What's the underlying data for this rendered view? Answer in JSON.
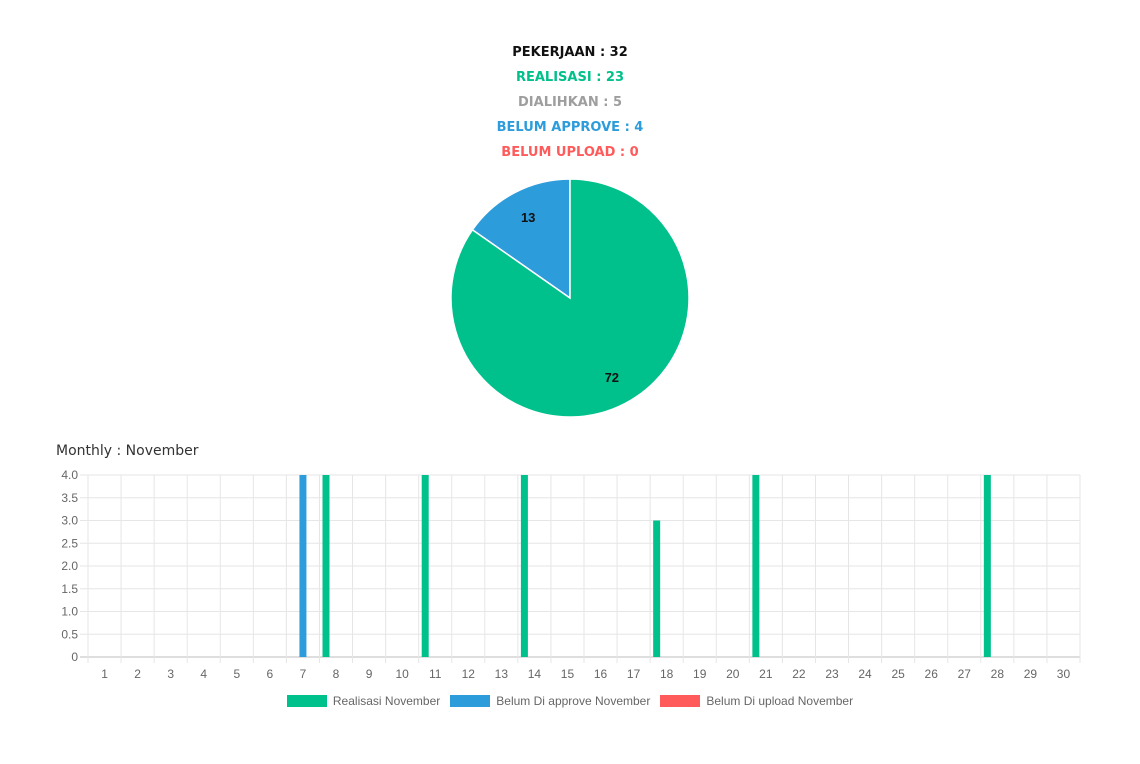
{
  "summary": {
    "pekerjaan": "PEKERJAAN : 32",
    "realisasi": "REALISASI : 23",
    "dialihkan": "DIALIHKAN : 5",
    "belum_approve": "BELUM APPROVE : 4",
    "belum_upload": "BELUM UPLOAD : 0"
  },
  "colors": {
    "green": "#00c08b",
    "blue": "#2d9cdb",
    "red": "#ff5b5b",
    "gray": "#9e9e9e",
    "black": "#111111"
  },
  "chart_data": [
    {
      "type": "pie",
      "slices": [
        {
          "label": "13",
          "value": 13,
          "color": "#2d9cdb"
        },
        {
          "label": "72",
          "value": 72,
          "color": "#00c08b"
        }
      ]
    },
    {
      "type": "bar",
      "title": "Monthly : November",
      "categories": [
        "1",
        "2",
        "3",
        "4",
        "5",
        "6",
        "7",
        "8",
        "9",
        "10",
        "11",
        "12",
        "13",
        "14",
        "15",
        "16",
        "17",
        "18",
        "19",
        "20",
        "21",
        "22",
        "23",
        "24",
        "25",
        "26",
        "27",
        "28",
        "29",
        "30"
      ],
      "series": [
        {
          "name": "Realisasi November",
          "color": "#00c08b",
          "values": [
            0,
            0,
            0,
            0,
            0,
            0,
            0,
            4,
            0,
            0,
            4,
            0,
            0,
            4,
            0,
            0,
            0,
            3,
            0,
            0,
            4,
            0,
            0,
            0,
            0,
            0,
            0,
            4,
            0,
            0
          ]
        },
        {
          "name": "Belum Di approve November",
          "color": "#2d9cdb",
          "values": [
            0,
            0,
            0,
            0,
            0,
            0,
            4,
            0,
            0,
            0,
            0,
            0,
            0,
            0,
            0,
            0,
            0,
            0,
            0,
            0,
            0,
            0,
            0,
            0,
            0,
            0,
            0,
            0,
            0,
            0
          ]
        },
        {
          "name": "Belum Di upload November",
          "color": "#ff5b5b",
          "values": [
            0,
            0,
            0,
            0,
            0,
            0,
            0,
            0,
            0,
            0,
            0,
            0,
            0,
            0,
            0,
            0,
            0,
            0,
            0,
            0,
            0,
            0,
            0,
            0,
            0,
            0,
            0,
            0,
            0,
            0
          ]
        }
      ],
      "y_ticks": [
        "4.0",
        "3.5",
        "3.0",
        "2.5",
        "2.0",
        "1.5",
        "1.0",
        "0.5",
        "0"
      ],
      "ylim": [
        0,
        4
      ],
      "grid": true,
      "legend_position": "bottom"
    }
  ]
}
